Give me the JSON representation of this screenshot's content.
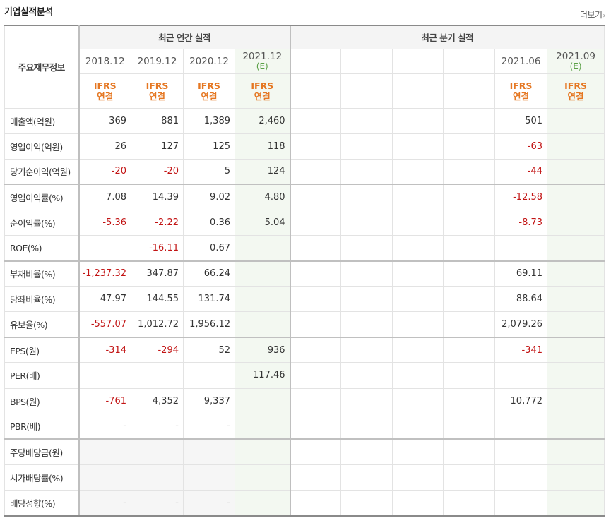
{
  "section": {
    "title": "기업실적분석",
    "more_label": "더보기",
    "more_icon": "chevron-right-icon"
  },
  "header": {
    "label_col": "주요재무정보",
    "annual_title": "최근 연간 실적",
    "quarter_title": "최근 분기 실적",
    "periods": [
      "2018.12",
      "2019.12",
      "2020.12",
      "2021.12",
      "",
      "",
      "",
      "",
      "2021.06",
      "2021.09"
    ],
    "estimate_marks": [
      "",
      "",
      "",
      "(E)",
      "",
      "",
      "",
      "",
      "",
      "(E)"
    ],
    "ifrs_top": [
      "IFRS",
      "IFRS",
      "IFRS",
      "IFRS",
      "",
      "",
      "",
      "",
      "IFRS",
      "IFRS"
    ],
    "ifrs_bottom": [
      "연결",
      "연결",
      "연결",
      "연결",
      "",
      "",
      "",
      "",
      "연결",
      "연결"
    ]
  },
  "rows": [
    {
      "label": "매출액(억원)",
      "values": [
        "369",
        "881",
        "1,389",
        "2,460",
        "",
        "",
        "",
        "",
        "501",
        ""
      ]
    },
    {
      "label": "영업이익(억원)",
      "values": [
        "26",
        "127",
        "125",
        "118",
        "",
        "",
        "",
        "",
        "-63",
        ""
      ]
    },
    {
      "label": "당기순이익(억원)",
      "values": [
        "-20",
        "-20",
        "5",
        "124",
        "",
        "",
        "",
        "",
        "-44",
        ""
      ]
    },
    {
      "label": "영업이익률(%)",
      "values": [
        "7.08",
        "14.39",
        "9.02",
        "4.80",
        "",
        "",
        "",
        "",
        "-12.58",
        ""
      ]
    },
    {
      "label": "순이익률(%)",
      "values": [
        "-5.36",
        "-2.22",
        "0.36",
        "5.04",
        "",
        "",
        "",
        "",
        "-8.73",
        ""
      ]
    },
    {
      "label": "ROE(%)",
      "values": [
        "",
        "-16.11",
        "0.67",
        "",
        "",
        "",
        "",
        "",
        "",
        ""
      ]
    },
    {
      "label": "부채비율(%)",
      "values": [
        "-1,237.32",
        "347.87",
        "66.24",
        "",
        "",
        "",
        "",
        "",
        "69.11",
        ""
      ]
    },
    {
      "label": "당좌비율(%)",
      "values": [
        "47.97",
        "144.55",
        "131.74",
        "",
        "",
        "",
        "",
        "",
        "88.64",
        ""
      ]
    },
    {
      "label": "유보율(%)",
      "values": [
        "-557.07",
        "1,012.72",
        "1,956.12",
        "",
        "",
        "",
        "",
        "",
        "2,079.26",
        ""
      ]
    },
    {
      "label": "EPS(원)",
      "values": [
        "-314",
        "-294",
        "52",
        "936",
        "",
        "",
        "",
        "",
        "-341",
        ""
      ]
    },
    {
      "label": "PER(배)",
      "values": [
        "",
        "",
        "",
        "117.46",
        "",
        "",
        "",
        "",
        "",
        ""
      ]
    },
    {
      "label": "BPS(원)",
      "values": [
        "-761",
        "4,352",
        "9,337",
        "",
        "",
        "",
        "",
        "",
        "10,772",
        ""
      ]
    },
    {
      "label": "PBR(배)",
      "values": [
        "-",
        "-",
        "-",
        "",
        "",
        "",
        "",
        "",
        "",
        ""
      ]
    },
    {
      "label": "주당배당금(원)",
      "values": [
        "",
        "",
        "",
        "",
        "",
        "",
        "",
        "",
        "",
        ""
      ]
    },
    {
      "label": "시가배당률(%)",
      "values": [
        "",
        "",
        "",
        "",
        "",
        "",
        "",
        "",
        "",
        ""
      ]
    },
    {
      "label": "배당성향(%)",
      "values": [
        "-",
        "-",
        "-",
        "",
        "",
        "",
        "",
        "",
        "",
        ""
      ]
    }
  ],
  "colors": {
    "negative": "#c21414",
    "ifrs": "#e57722",
    "estimate_mark": "#5aa046",
    "estimate_bg": "#f3f8f1"
  }
}
